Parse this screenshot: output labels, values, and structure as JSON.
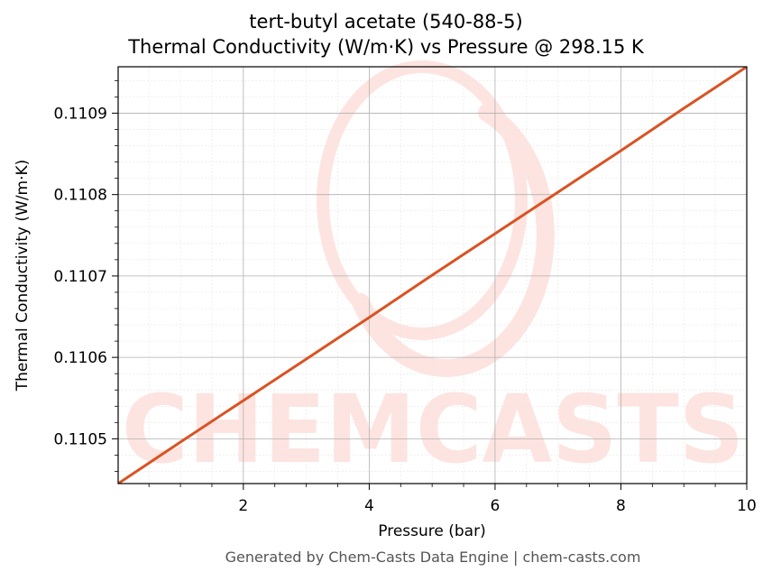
{
  "chart_data": {
    "type": "line",
    "title": "tert-butyl acetate (540-88-5)",
    "subtitle": "Thermal Conductivity (W/m·K) vs Pressure @ 298.15 K",
    "xlabel": "Pressure (bar)",
    "ylabel": "Thermal Conductivity (W/m·K)",
    "xlim": [
      0.01,
      10
    ],
    "ylim": [
      0.110445,
      0.110957
    ],
    "xticks": [
      2,
      4,
      6,
      8,
      10
    ],
    "xtick_labels": [
      "2",
      "4",
      "6",
      "8",
      "10"
    ],
    "yticks": [
      0.1105,
      0.1106,
      0.1107,
      0.1108,
      0.1109
    ],
    "ytick_labels": [
      "0.1105",
      "0.1106",
      "0.1107",
      "0.1108",
      "0.1109"
    ],
    "grid": true,
    "series": [
      {
        "x": [
          0.01,
          1,
          2,
          3,
          4,
          5,
          6,
          7,
          8,
          9,
          10
        ],
        "y": [
          0.110445,
          0.110496,
          0.110547,
          0.110598,
          0.110649,
          0.110701,
          0.110752,
          0.110803,
          0.110854,
          0.110906,
          0.110957
        ],
        "color": "#d95323"
      }
    ],
    "watermark": "CHEMCASTS",
    "watermark_color": "#fde4e0"
  },
  "footer": "Generated by Chem-Casts Data Engine | chem-casts.com"
}
